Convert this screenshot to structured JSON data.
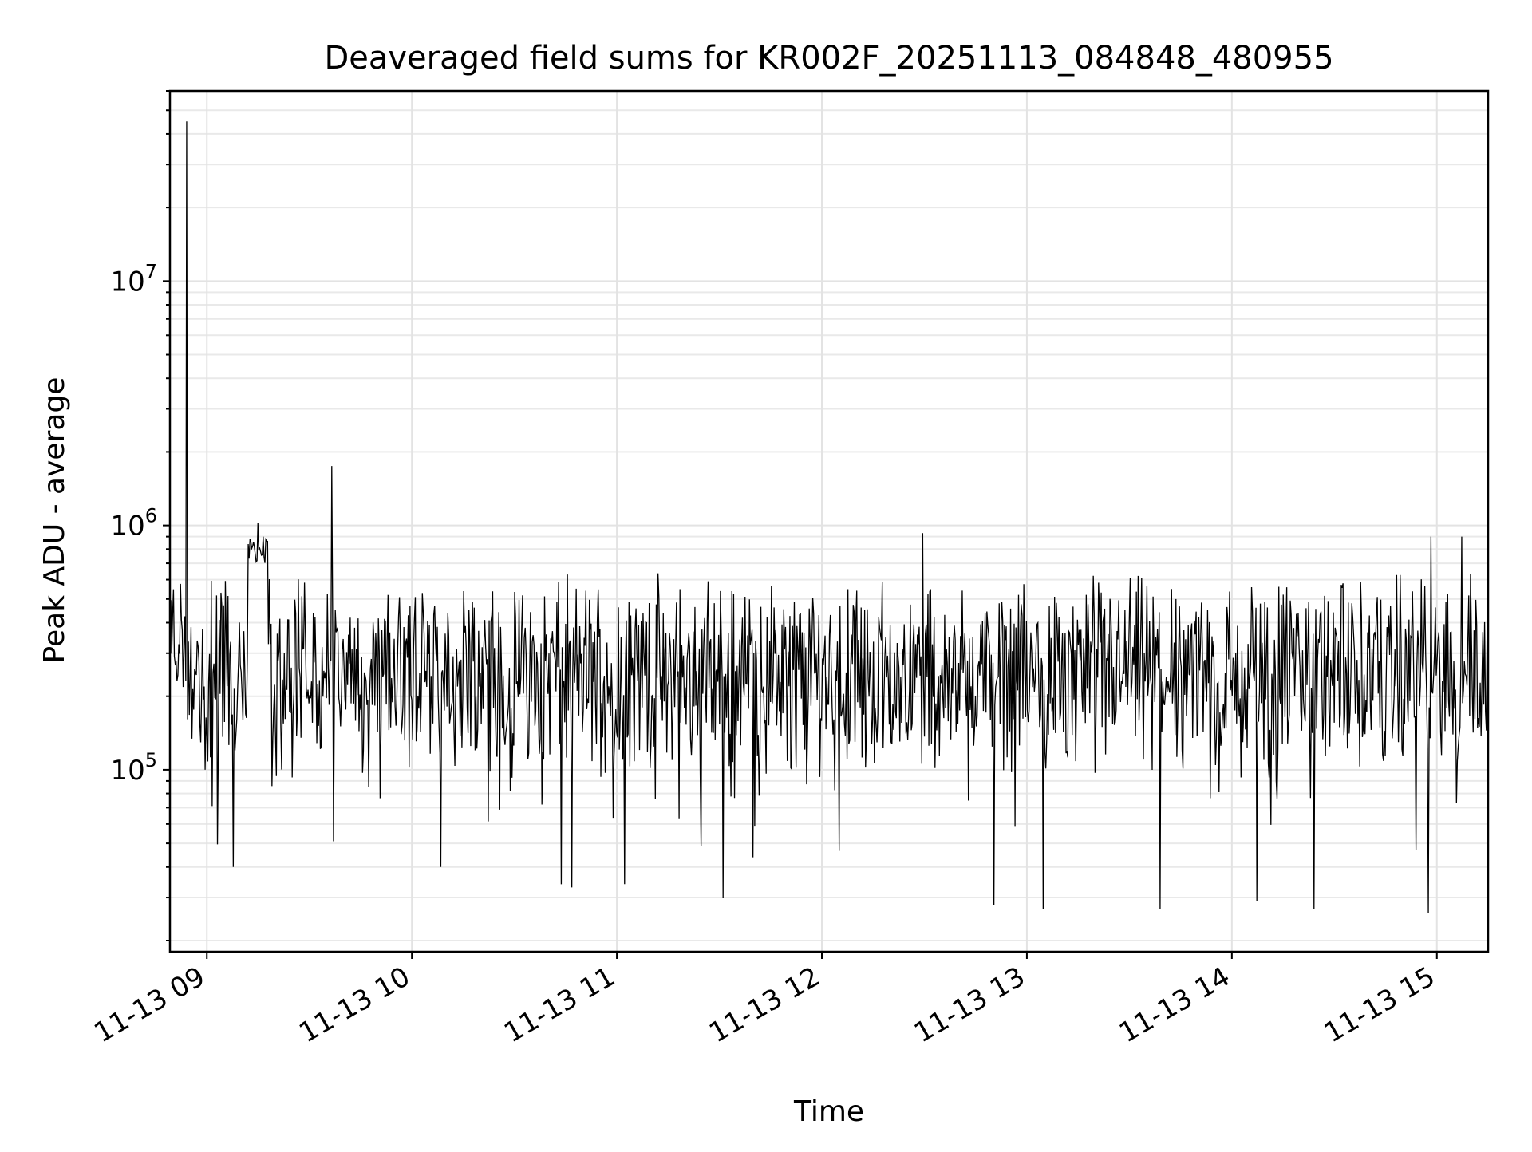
{
  "chart_data": {
    "type": "line",
    "title": "Deaveraged field sums for KR002F_20251113_084848_480955",
    "xlabel": "Time",
    "ylabel": "Peak ADU - average",
    "yscale": "log",
    "ylim": [
      18000,
      60000000
    ],
    "x_range_hours": [
      8.82,
      15.25
    ],
    "x_ticks": [
      {
        "hour": 9,
        "label": "11-13 09"
      },
      {
        "hour": 10,
        "label": "11-13 10"
      },
      {
        "hour": 11,
        "label": "11-13 11"
      },
      {
        "hour": 12,
        "label": "11-13 12"
      },
      {
        "hour": 13,
        "label": "11-13 13"
      },
      {
        "hour": 14,
        "label": "11-13 14"
      },
      {
        "hour": 15,
        "label": "11-13 15"
      }
    ],
    "y_ticks": [
      {
        "value": 100000,
        "base": "10",
        "exp": "5"
      },
      {
        "value": 1000000,
        "base": "10",
        "exp": "6"
      },
      {
        "value": 10000000,
        "base": "10",
        "exp": "7"
      }
    ],
    "grid": true,
    "series_color": "#000000",
    "series": [
      {
        "name": "deaveraged field sum",
        "sample_count": 1500,
        "baseline_median": 250000,
        "spikes": [
          {
            "hour": 8.9,
            "value": 45000000
          },
          {
            "hour": 9.61,
            "value": 1750000
          },
          {
            "hour": 9.25,
            "value": 1020000
          },
          {
            "hour": 12.49,
            "value": 930000
          },
          {
            "hour": 14.97,
            "value": 900000
          },
          {
            "hour": 15.12,
            "value": 900000
          }
        ],
        "dips": [
          {
            "hour": 9.13,
            "value": 40000
          },
          {
            "hour": 10.14,
            "value": 40000
          },
          {
            "hour": 10.73,
            "value": 34000
          },
          {
            "hour": 10.78,
            "value": 33000
          },
          {
            "hour": 11.52,
            "value": 30000
          },
          {
            "hour": 12.84,
            "value": 28000
          },
          {
            "hour": 13.08,
            "value": 27000
          },
          {
            "hour": 13.65,
            "value": 27000
          },
          {
            "hour": 14.12,
            "value": 29000
          },
          {
            "hour": 14.4,
            "value": 27000
          },
          {
            "hour": 14.96,
            "value": 26000
          }
        ]
      }
    ]
  }
}
